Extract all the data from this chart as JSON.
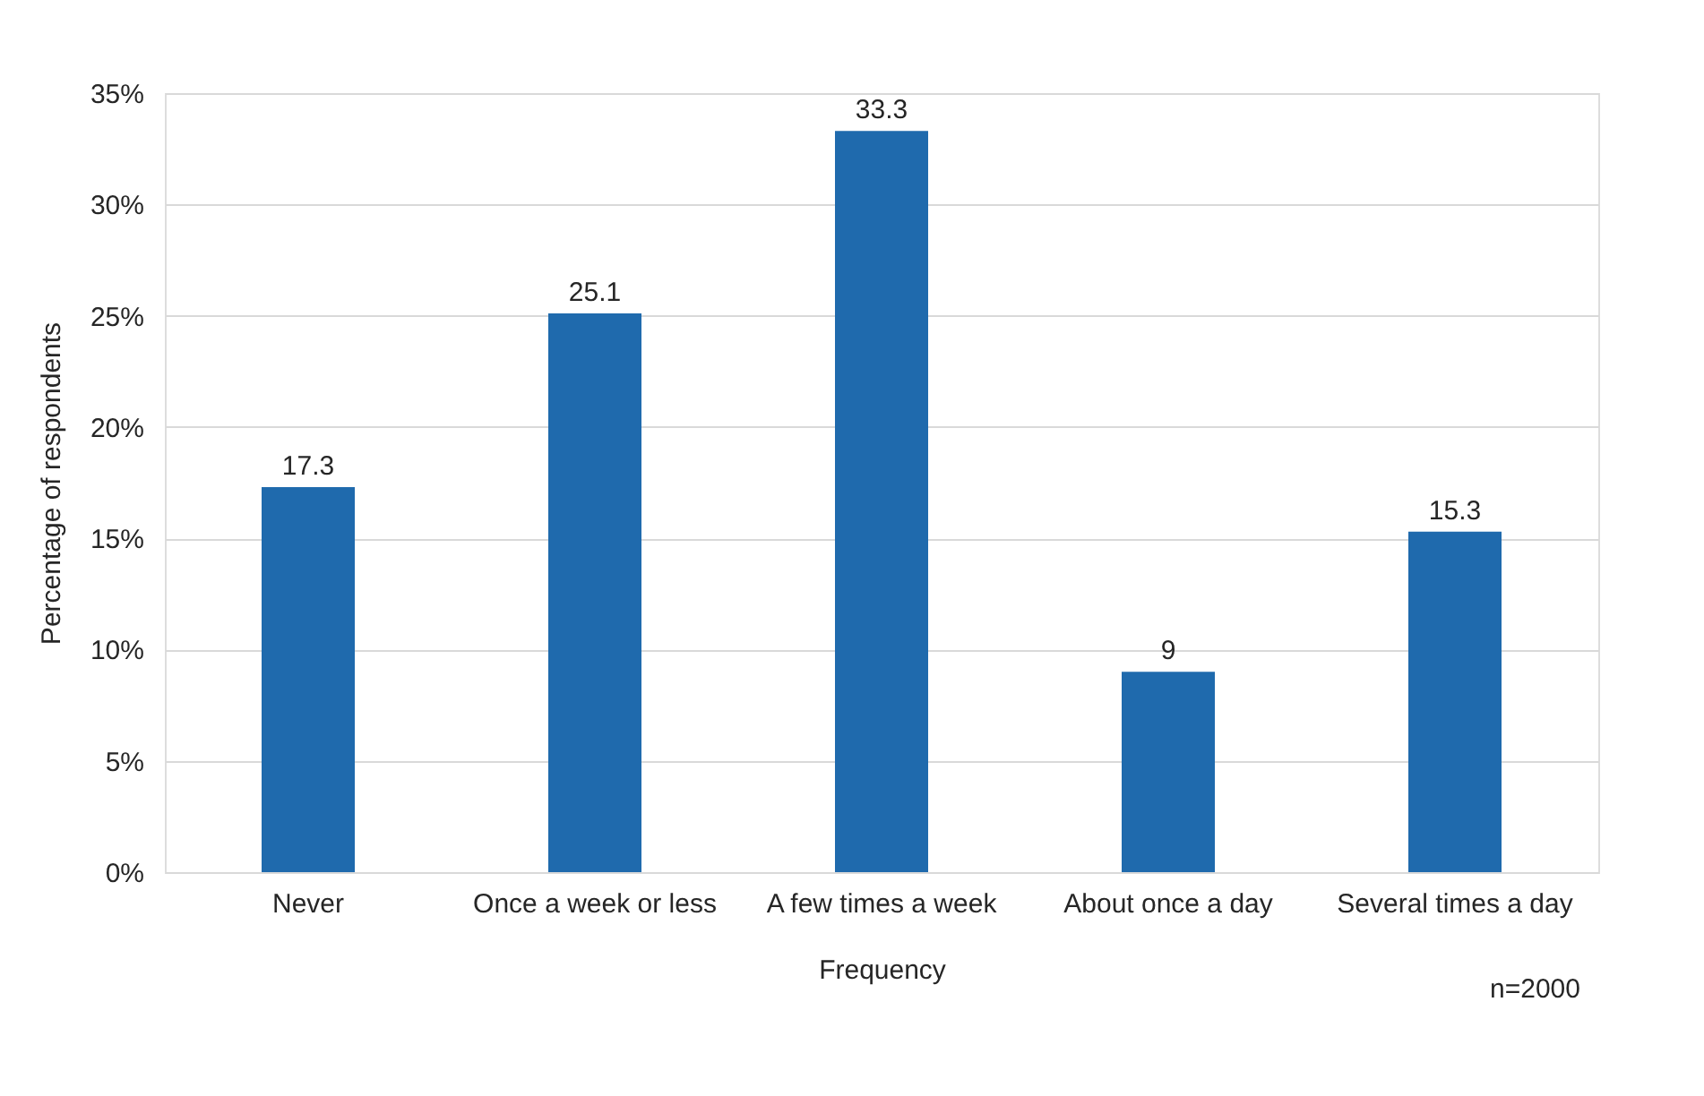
{
  "chart_data": {
    "type": "bar",
    "xlabel": "Frequency",
    "ylabel": "Percentage of respondents",
    "categories": [
      "Never",
      "Once a week or less",
      "A few times a week",
      "About once a day",
      "Several times a day"
    ],
    "values": [
      17.3,
      25.1,
      33.3,
      9,
      15.3
    ],
    "color": "#1f6aad",
    "ylim": [
      0,
      35
    ],
    "yticks": [
      {
        "value": 0,
        "label": "0%"
      },
      {
        "value": 5,
        "label": "5%"
      },
      {
        "value": 10,
        "label": "10%"
      },
      {
        "value": 15,
        "label": "15%"
      },
      {
        "value": 20,
        "label": "20%"
      },
      {
        "value": 25,
        "label": "25%"
      },
      {
        "value": 30,
        "label": "30%"
      },
      {
        "value": 35,
        "label": "35%"
      }
    ],
    "grid": "y",
    "data_labels": true,
    "annotations": [
      "n=2000"
    ]
  }
}
